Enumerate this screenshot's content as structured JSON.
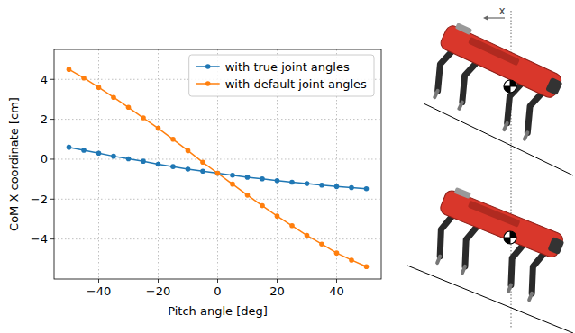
{
  "chart_data": {
    "type": "line",
    "x_label": "Pitch angle [deg]",
    "y_label": "CoM X coordinate [cm]",
    "x": [
      -50,
      -45,
      -40,
      -35,
      -30,
      -25,
      -20,
      -15,
      -10,
      -5,
      0,
      5,
      10,
      15,
      20,
      25,
      30,
      35,
      40,
      45,
      50
    ],
    "series": [
      {
        "name": "with true joint angles",
        "color": "#1f77b4",
        "marker": "circle",
        "line_style": "solid",
        "values": [
          0.6,
          0.45,
          0.3,
          0.15,
          0.02,
          -0.1,
          -0.25,
          -0.37,
          -0.5,
          -0.6,
          -0.7,
          -0.8,
          -0.9,
          -0.98,
          -1.07,
          -1.15,
          -1.22,
          -1.3,
          -1.37,
          -1.42,
          -1.48
        ]
      },
      {
        "name": "with default joint angles",
        "color": "#ff7f0e",
        "marker": "circle",
        "line_style": "solid",
        "values": [
          4.5,
          4.07,
          3.6,
          3.1,
          2.6,
          2.07,
          1.55,
          1.0,
          0.43,
          -0.15,
          -0.7,
          -1.25,
          -1.8,
          -2.33,
          -2.85,
          -3.33,
          -3.82,
          -4.25,
          -4.7,
          -5.05,
          -5.38
        ]
      }
    ],
    "xlim": [
      -55,
      55
    ],
    "xticks": [
      {
        "value": -40,
        "label": "−40"
      },
      {
        "value": -20,
        "label": "−20"
      },
      0,
      20,
      40
    ],
    "ylim": [
      -6,
      5.5
    ],
    "yticks": [
      {
        "value": -4,
        "label": "−4"
      },
      {
        "value": -2,
        "label": "−2"
      },
      0,
      2,
      4
    ],
    "grid": true,
    "legend": "upper right",
    "annotations": [
      "x"
    ]
  }
}
